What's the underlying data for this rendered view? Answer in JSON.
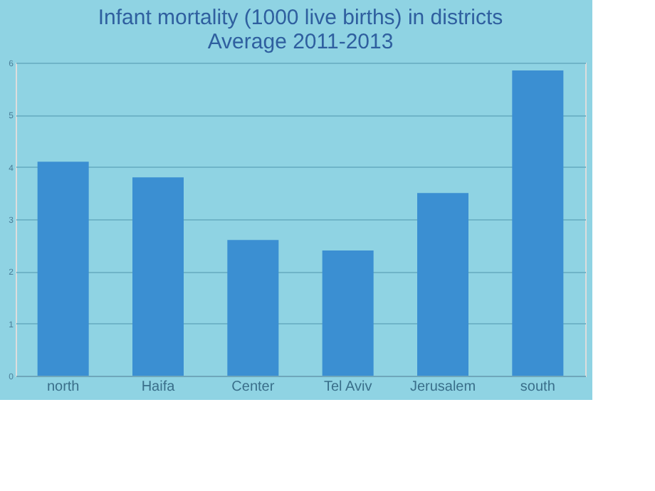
{
  "chart_data": {
    "type": "bar",
    "title": [
      "Infant mortality (1000 live births) in districts",
      "Average 2011-2013"
    ],
    "categories": [
      "north",
      "Haifa",
      "Center",
      "Tel Aviv",
      "Jerusalem",
      "south"
    ],
    "values": [
      4.1,
      3.8,
      2.6,
      2.4,
      3.5,
      5.85
    ],
    "color": "#3b8fd2",
    "ylim": [
      0,
      6
    ],
    "yticks": [
      0,
      1,
      2,
      3,
      4,
      5,
      6
    ],
    "grid": "y"
  }
}
